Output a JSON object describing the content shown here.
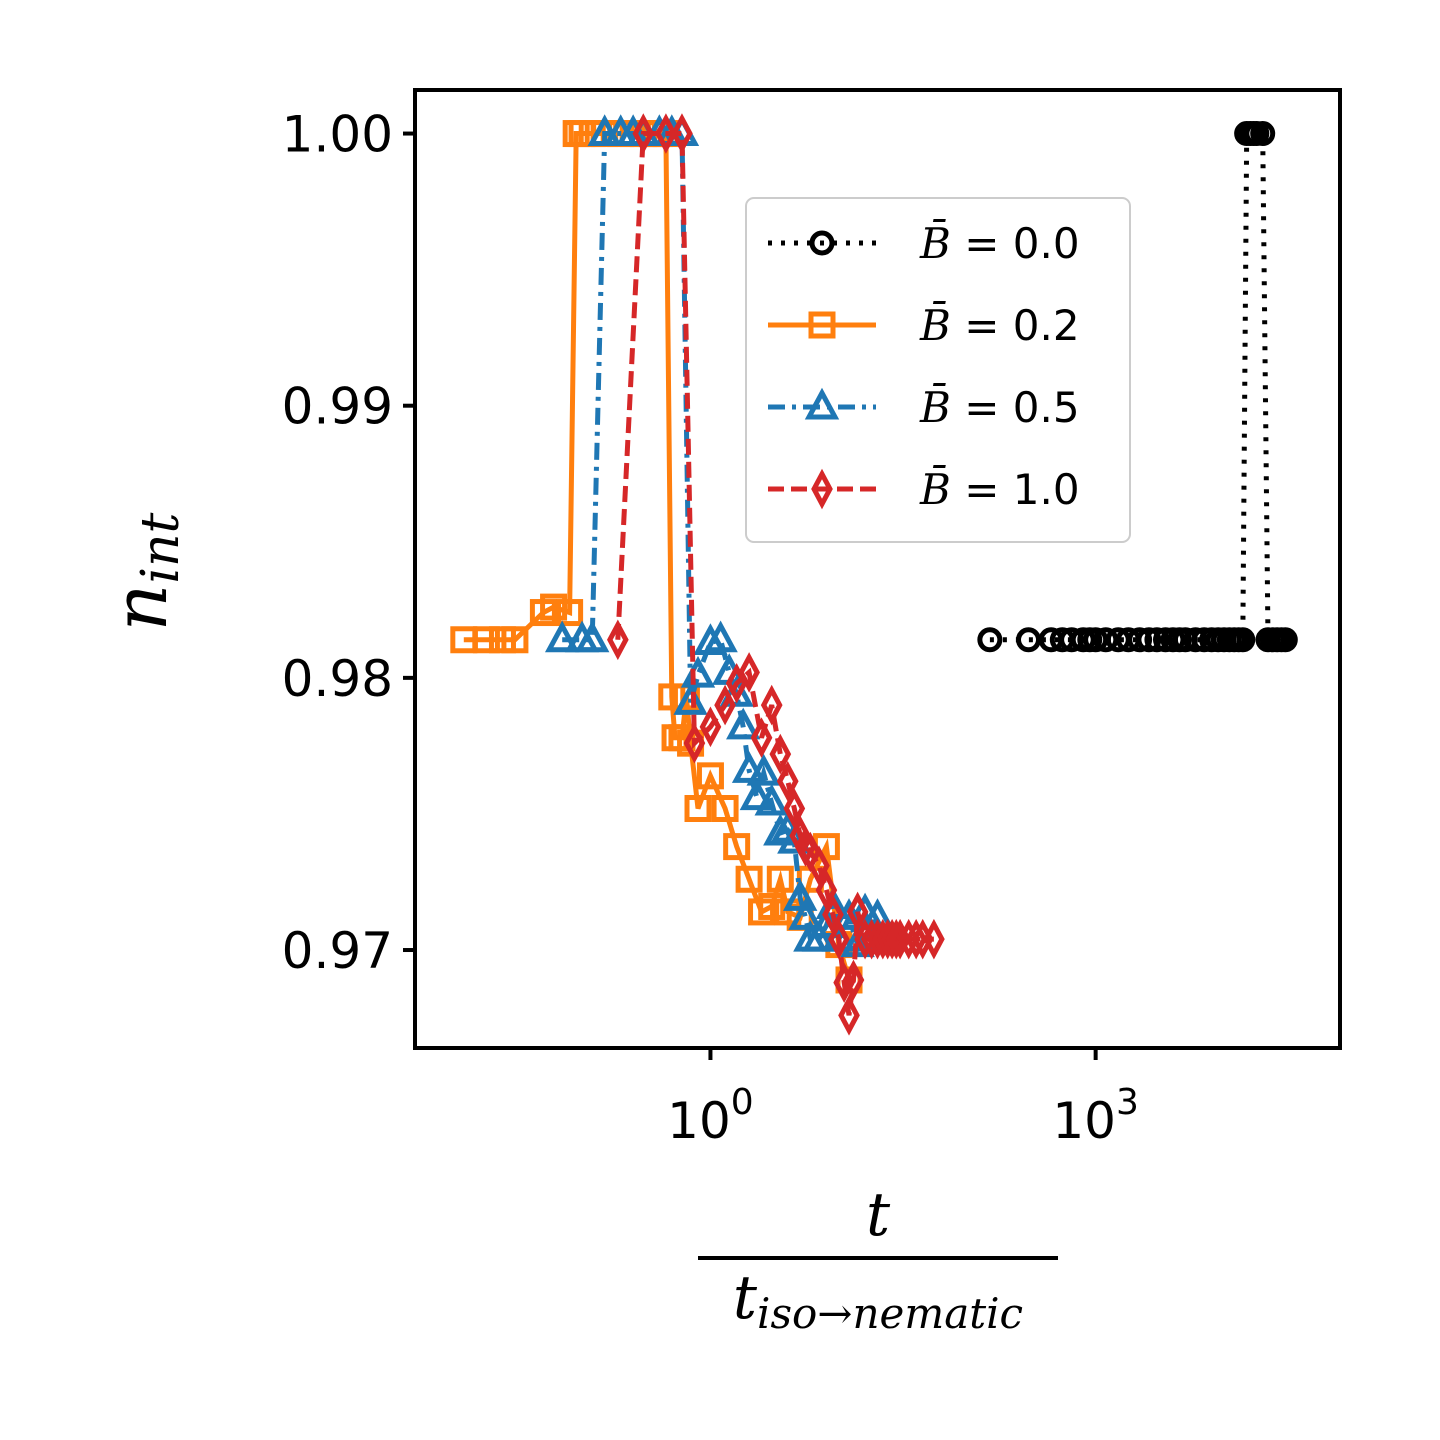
{
  "chart_data": {
    "type": "line",
    "xscale": "log",
    "xlim": [
      0.005,
      80000
    ],
    "ylim": [
      0.9664,
      1.0016
    ],
    "xticks": [
      {
        "value": 1,
        "base": "10",
        "exp": "0"
      },
      {
        "value": 1000,
        "base": "10",
        "exp": "3"
      }
    ],
    "yticks": [
      {
        "value": 0.97,
        "label": "0.97"
      },
      {
        "value": 0.98,
        "label": "0.98"
      },
      {
        "value": 0.99,
        "label": "0.99"
      },
      {
        "value": 1.0,
        "label": "1.00"
      }
    ],
    "ylabel": {
      "main": "n",
      "sub": "int"
    },
    "xlabel": {
      "numerator": "t",
      "denominator_main": "t",
      "denominator_sub": "iso→nematic"
    },
    "grid": false,
    "legend_position": "upper right",
    "series": [
      {
        "name": "B̄ = 0.0",
        "label_value": "0.0",
        "color": "#000000",
        "marker": "circle",
        "linestyle": "dotted",
        "x": [
          150,
          300,
          450,
          550,
          650,
          800,
          900,
          1000,
          1200,
          1500,
          1800,
          2200,
          2600,
          3000,
          3500,
          4000,
          4500,
          5000,
          6000,
          7000,
          8000,
          9000,
          10000,
          11000,
          12000,
          13000,
          14000,
          15000,
          16000,
          17000,
          18000,
          20000,
          22000,
          24000,
          26000,
          28000,
          30000
        ],
        "y": [
          0.9814,
          0.9814,
          0.9814,
          0.9814,
          0.9814,
          0.9814,
          0.9814,
          0.9814,
          0.9814,
          0.9814,
          0.9814,
          0.9814,
          0.9814,
          0.9814,
          0.9814,
          0.9814,
          0.9814,
          0.9814,
          0.9814,
          0.9814,
          0.9814,
          0.9814,
          0.9814,
          0.9814,
          0.9814,
          0.9814,
          0.9814,
          1.0,
          1.0,
          1.0,
          1.0,
          1.0,
          0.9814,
          0.9814,
          0.9814,
          0.9814,
          0.9814
        ]
      },
      {
        "name": "B̄ = 0.2",
        "label_value": "0.2",
        "color": "#ff7f0e",
        "marker": "square",
        "linestyle": "solid",
        "x": [
          0.012,
          0.018,
          0.024,
          0.03,
          0.05,
          0.06,
          0.08,
          0.09,
          0.1,
          0.12,
          0.15,
          0.2,
          0.25,
          0.3,
          0.35,
          0.4,
          0.45,
          0.5,
          0.53,
          0.6,
          0.65,
          0.7,
          0.8,
          1.0,
          1.3,
          1.6,
          2.0,
          2.5,
          3.0,
          3.5,
          4.0,
          5.0,
          6.0,
          8.0,
          10.0,
          12.0
        ],
        "y": [
          0.9814,
          0.9814,
          0.9814,
          0.9814,
          0.9824,
          0.9826,
          0.9824,
          1.0,
          1.0,
          1.0,
          1.0,
          1.0,
          1.0,
          1.0,
          1.0,
          1.0,
          1.0,
          0.9793,
          0.9778,
          0.9778,
          0.9793,
          0.9776,
          0.9752,
          0.9764,
          0.9752,
          0.9738,
          0.9726,
          0.9714,
          0.9716,
          0.9726,
          0.9714,
          0.9712,
          0.9726,
          0.9738,
          0.9702,
          0.9689
        ]
      },
      {
        "name": "B̄ = 0.5",
        "label_value": "0.5",
        "color": "#1f77b4",
        "marker": "triangle",
        "linestyle": "dashdot",
        "x": [
          0.07,
          0.1,
          0.12,
          0.15,
          0.2,
          0.25,
          0.3,
          0.4,
          0.5,
          0.6,
          0.7,
          0.8,
          1.0,
          1.2,
          1.4,
          1.6,
          1.8,
          2.0,
          2.3,
          2.6,
          3.0,
          3.5,
          4.0,
          4.5,
          5.0,
          5.5,
          6.0,
          7.0,
          8.0,
          9.0,
          10.0,
          12.0,
          14.0,
          16.0,
          18.0,
          20.0
        ],
        "y": [
          0.9814,
          0.9814,
          0.9814,
          1.0,
          1.0,
          1.0,
          1.0,
          1.0,
          1.0,
          1.0,
          0.9791,
          0.9801,
          0.9813,
          0.9814,
          0.9802,
          0.9794,
          0.9782,
          0.9766,
          0.9756,
          0.9765,
          0.9754,
          0.9743,
          0.9744,
          0.974,
          0.9719,
          0.9712,
          0.9704,
          0.9704,
          0.9709,
          0.9716,
          0.9704,
          0.9712,
          0.9702,
          0.9714,
          0.9704,
          0.9712
        ]
      },
      {
        "name": "B̄ = 1.0",
        "label_value": "1.0",
        "color": "#d62728",
        "marker": "thin_diamond",
        "linestyle": "dashed",
        "x": [
          0.19,
          0.3,
          0.45,
          0.6,
          0.75,
          1.0,
          1.3,
          1.6,
          2.0,
          2.5,
          3.0,
          3.5,
          4.0,
          4.5,
          5.0,
          5.5,
          6.0,
          7.0,
          8.0,
          9.0,
          10.0,
          11.0,
          12.0,
          13.0,
          14.0,
          16.0,
          18.0,
          20.0,
          22.0,
          24.0,
          26.0,
          28.0,
          30.0,
          35.0,
          40.0,
          45.0,
          55.0
        ],
        "y": [
          0.9814,
          1.0,
          1.0,
          1.0,
          0.9776,
          0.9782,
          0.979,
          0.9798,
          0.9802,
          0.9778,
          0.979,
          0.9772,
          0.9762,
          0.9752,
          0.9742,
          0.9738,
          0.9736,
          0.9731,
          0.9722,
          0.9713,
          0.9704,
          0.9688,
          0.9676,
          0.9689,
          0.9714,
          0.9704,
          0.9704,
          0.9704,
          0.9704,
          0.9704,
          0.9704,
          0.9704,
          0.9704,
          0.9704,
          0.9704,
          0.9704,
          0.9704
        ]
      }
    ]
  }
}
